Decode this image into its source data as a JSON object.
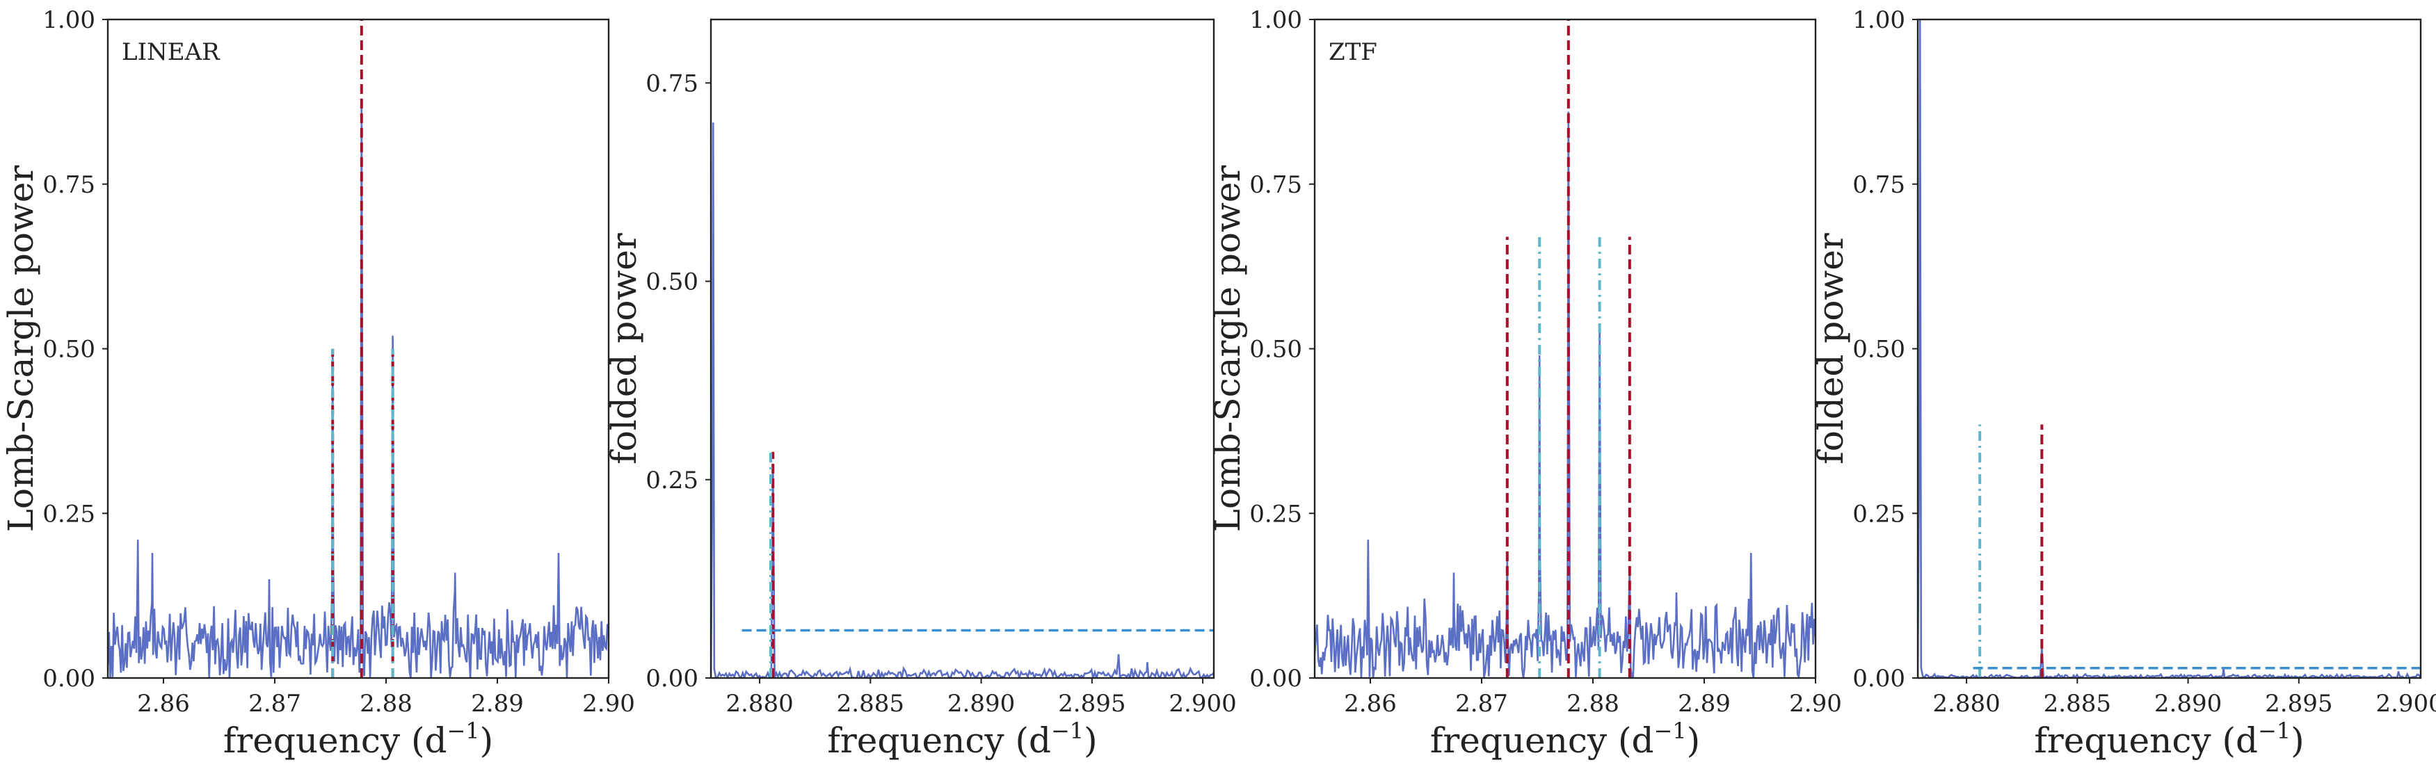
{
  "chart_data": [
    {
      "type": "line",
      "annotation": "LINEAR",
      "ylabel": "Lomb-Scargle power",
      "xlabel": "frequency (d",
      "xlabel_sup": "−1",
      "xlabel_end": ")",
      "xlim": [
        2.855,
        2.9
      ],
      "ylim": [
        0,
        1
      ],
      "xticks": [
        2.86,
        2.87,
        2.88,
        2.89,
        2.9
      ],
      "xtick_labels": [
        "2.86",
        "2.87",
        "2.88",
        "2.89",
        "2.90"
      ],
      "yticks": [
        0,
        0.25,
        0.5,
        0.75,
        1.0
      ],
      "ytick_labels": [
        "0.00",
        "0.25",
        "0.50",
        "0.75",
        "1.00"
      ],
      "series": [
        {
          "color": "#5b6fc4",
          "noise": {
            "seed": 7,
            "base": 0.055,
            "amp": 0.05,
            "pts": 420
          },
          "spikes": [
            [
              2.8577,
              0.21
            ],
            [
              2.859,
              0.19
            ],
            [
              2.8752,
              0.5
            ],
            [
              2.8778,
              0.88
            ],
            [
              2.8806,
              0.52
            ],
            [
              2.8695,
              0.15
            ],
            [
              2.8862,
              0.16
            ],
            [
              2.8955,
              0.19
            ]
          ]
        }
      ],
      "vlines": [
        {
          "x": 2.8752,
          "ymin": 0,
          "ymax": 0.5,
          "color": "#a8102a",
          "style": "dashed"
        },
        {
          "x": 2.8778,
          "ymin": 0,
          "ymax": 1.0,
          "color": "#a8102a",
          "style": "dashed"
        },
        {
          "x": 2.8806,
          "ymin": 0,
          "ymax": 0.5,
          "color": "#a8102a",
          "style": "dashed"
        },
        {
          "x": 2.8752,
          "ymin": 0,
          "ymax": 0.5,
          "color": "#5fb7c9",
          "style": "dashdot"
        },
        {
          "x": 2.8806,
          "ymin": 0,
          "ymax": 0.5,
          "color": "#5fb7c9",
          "style": "dashdot"
        }
      ],
      "hlines": []
    },
    {
      "type": "line",
      "annotation": "",
      "ylabel": "folded power",
      "xlabel": "frequency (d",
      "xlabel_sup": "−1",
      "xlabel_end": ")",
      "xlim": [
        2.8778,
        2.9005
      ],
      "ylim": [
        0,
        0.83
      ],
      "xticks": [
        2.88,
        2.885,
        2.89,
        2.895,
        2.9
      ],
      "xtick_labels": [
        "2.880",
        "2.885",
        "2.890",
        "2.895",
        "2.900"
      ],
      "yticks": [
        0,
        0.25,
        0.5,
        0.75
      ],
      "ytick_labels": [
        "0.00",
        "0.25",
        "0.50",
        "0.75"
      ],
      "series": [
        {
          "color": "#5b6fc4",
          "noise": {
            "seed": 11,
            "base": 0.004,
            "amp": 0.006,
            "pts": 300
          },
          "spikes": [
            [
              2.8779,
              0.7
            ],
            [
              2.8806,
              0.27
            ],
            [
              2.8962,
              0.03
            ],
            [
              2.8975,
              0.02
            ]
          ]
        }
      ],
      "vlines": [
        {
          "x": 2.8806,
          "ymin": 0,
          "ymax": 0.285,
          "color": "#a8102a",
          "style": "dashed"
        },
        {
          "x": 2.8805,
          "ymin": 0,
          "ymax": 0.285,
          "color": "#5fb7c9",
          "style": "dashdot"
        }
      ],
      "hlines": [
        {
          "y": 0.06,
          "xmin": 2.8792,
          "xmax": 2.9005,
          "color": "#3a8fd0",
          "style": "dashed"
        }
      ]
    },
    {
      "type": "line",
      "annotation": "ZTF",
      "ylabel": "Lomb-Scargle power",
      "xlabel": "frequency (d",
      "xlabel_sup": "−1",
      "xlabel_end": ")",
      "xlim": [
        2.855,
        2.9
      ],
      "ylim": [
        0,
        1
      ],
      "xticks": [
        2.86,
        2.87,
        2.88,
        2.89,
        2.9
      ],
      "xtick_labels": [
        "2.86",
        "2.87",
        "2.88",
        "2.89",
        "2.90"
      ],
      "yticks": [
        0,
        0.25,
        0.5,
        0.75,
        1.0
      ],
      "ytick_labels": [
        "0.00",
        "0.25",
        "0.50",
        "0.75",
        "1.00"
      ],
      "series": [
        {
          "color": "#5b6fc4",
          "noise": {
            "seed": 23,
            "base": 0.055,
            "amp": 0.05,
            "pts": 420
          },
          "spikes": [
            [
              2.8598,
              0.21
            ],
            [
              2.8723,
              0.18
            ],
            [
              2.8752,
              0.49
            ],
            [
              2.8778,
              0.86
            ],
            [
              2.8806,
              0.53
            ],
            [
              2.8833,
              0.17
            ],
            [
              2.8675,
              0.16
            ],
            [
              2.8875,
              0.13
            ],
            [
              2.8942,
              0.19
            ]
          ]
        }
      ],
      "vlines": [
        {
          "x": 2.8723,
          "ymin": 0,
          "ymax": 0.67,
          "color": "#a8102a",
          "style": "dashed"
        },
        {
          "x": 2.8778,
          "ymin": 0,
          "ymax": 1.0,
          "color": "#a8102a",
          "style": "dashed"
        },
        {
          "x": 2.8833,
          "ymin": 0,
          "ymax": 0.67,
          "color": "#a8102a",
          "style": "dashed"
        },
        {
          "x": 2.8752,
          "ymin": 0,
          "ymax": 0.67,
          "color": "#5fb7c9",
          "style": "dashdot"
        },
        {
          "x": 2.8806,
          "ymin": 0,
          "ymax": 0.67,
          "color": "#5fb7c9",
          "style": "dashdot"
        }
      ],
      "hlines": []
    },
    {
      "type": "line",
      "annotation": "",
      "ylabel": "folded power",
      "xlabel": "frequency (d",
      "xlabel_sup": "−1",
      "xlabel_end": ")",
      "xlim": [
        2.8778,
        2.9005
      ],
      "ylim": [
        0,
        1
      ],
      "xticks": [
        2.88,
        2.885,
        2.89,
        2.895,
        2.9
      ],
      "xtick_labels": [
        "2.880",
        "2.885",
        "2.890",
        "2.895",
        "2.900"
      ],
      "yticks": [
        0,
        0.25,
        0.5,
        0.75,
        1.0
      ],
      "ytick_labels": [
        "0.00",
        "0.25",
        "0.50",
        "0.75",
        "1.00"
      ],
      "series": [
        {
          "color": "#5b6fc4",
          "noise": {
            "seed": 31,
            "base": 0.002,
            "amp": 0.003,
            "pts": 300
          },
          "spikes": [
            [
              2.8779,
              1.0
            ],
            [
              2.8834,
              0.045
            ],
            [
              2.8916,
              0.015
            ],
            [
              2.8995,
              0.01
            ]
          ]
        }
      ],
      "vlines": [
        {
          "x": 2.8806,
          "ymin": 0,
          "ymax": 0.385,
          "color": "#5fb7c9",
          "style": "dashdot"
        },
        {
          "x": 2.8834,
          "ymin": 0,
          "ymax": 0.385,
          "color": "#a8102a",
          "style": "dashed"
        }
      ],
      "hlines": [
        {
          "y": 0.015,
          "xmin": 2.8803,
          "xmax": 2.9005,
          "color": "#3a8fd0",
          "style": "dashed"
        }
      ]
    }
  ]
}
